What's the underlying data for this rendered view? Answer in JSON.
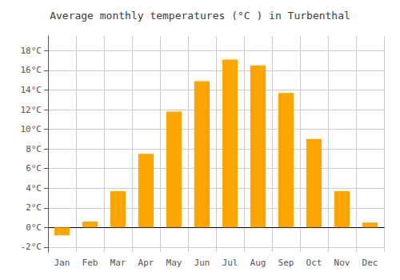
{
  "chart_data": {
    "type": "bar",
    "title": "Average monthly temperatures (°C ) in Turbenthal",
    "categories": [
      "Jan",
      "Feb",
      "Mar",
      "Apr",
      "May",
      "Jun",
      "Jul",
      "Aug",
      "Sep",
      "Oct",
      "Nov",
      "Dec"
    ],
    "values": [
      -0.8,
      0.6,
      3.7,
      7.5,
      11.8,
      14.9,
      17.1,
      16.5,
      13.7,
      9.0,
      3.7,
      0.5
    ],
    "color": "#FFA500",
    "ylim": [
      -2.5,
      19.5
    ],
    "yticks": [
      {
        "value": -2,
        "label": "-2°C"
      },
      {
        "value": 0,
        "label": "0°C"
      },
      {
        "value": 2,
        "label": "2°C"
      },
      {
        "value": 4,
        "label": "4°C"
      },
      {
        "value": 6,
        "label": "6°C"
      },
      {
        "value": 8,
        "label": "8°C"
      },
      {
        "value": 10,
        "label": "10°C"
      },
      {
        "value": 12,
        "label": "12°C"
      },
      {
        "value": 14,
        "label": "14°C"
      },
      {
        "value": 16,
        "label": "16°C"
      },
      {
        "value": 18,
        "label": "18°C"
      }
    ],
    "grid": true
  }
}
